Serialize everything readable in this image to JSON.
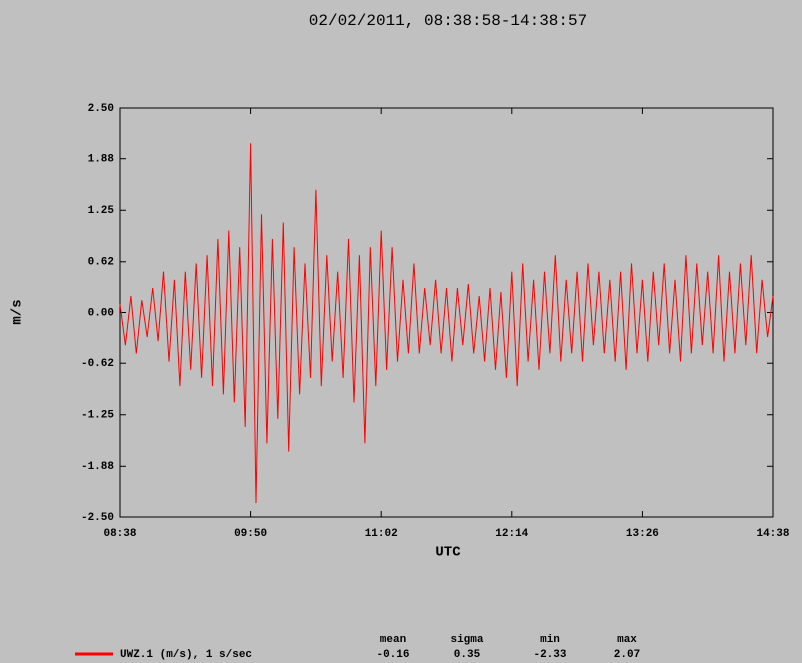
{
  "chart_data": {
    "type": "line",
    "title": "02/02/2011, 08:38:58-14:38:57",
    "xlabel": "UTC",
    "ylabel": "m/s",
    "xlim": [
      518,
      878
    ],
    "xticks": [
      {
        "value": 518,
        "label": "08:38"
      },
      {
        "value": 590,
        "label": "09:50"
      },
      {
        "value": 662,
        "label": "11:02"
      },
      {
        "value": 734,
        "label": "12:14"
      },
      {
        "value": 806,
        "label": "13:26"
      },
      {
        "value": 878,
        "label": "14:38"
      }
    ],
    "ylim": [
      -2.5,
      2.5
    ],
    "yticks": [
      {
        "value": 2.5,
        "label": "2.50"
      },
      {
        "value": 1.88,
        "label": "1.88"
      },
      {
        "value": 1.25,
        "label": "1.25"
      },
      {
        "value": 0.62,
        "label": "0.62"
      },
      {
        "value": 0,
        "label": "0.00"
      },
      {
        "value": -0.62,
        "label": "-0.62"
      },
      {
        "value": -1.25,
        "label": "-1.25"
      },
      {
        "value": -1.88,
        "label": "-1.88"
      },
      {
        "value": -2.5,
        "label": "-2.50"
      }
    ],
    "grid": false,
    "x": [
      518,
      521,
      524,
      527,
      530,
      533,
      536,
      539,
      542,
      545,
      548,
      551,
      554,
      557,
      560,
      563,
      566,
      569,
      572,
      575,
      578,
      581,
      584,
      587,
      590,
      593,
      596,
      599,
      602,
      605,
      608,
      611,
      614,
      617,
      620,
      623,
      626,
      629,
      632,
      635,
      638,
      641,
      644,
      647,
      650,
      653,
      656,
      659,
      662,
      665,
      668,
      671,
      674,
      677,
      680,
      683,
      686,
      689,
      692,
      695,
      698,
      701,
      704,
      707,
      710,
      713,
      716,
      719,
      722,
      725,
      728,
      731,
      734,
      737,
      740,
      743,
      746,
      749,
      752,
      755,
      758,
      761,
      764,
      767,
      770,
      773,
      776,
      779,
      782,
      785,
      788,
      791,
      794,
      797,
      800,
      803,
      806,
      809,
      812,
      815,
      818,
      821,
      824,
      827,
      830,
      833,
      836,
      839,
      842,
      845,
      848,
      851,
      854,
      857,
      860,
      863,
      866,
      869,
      872,
      875,
      878
    ],
    "series": [
      {
        "name": "UWZ.1 (m/s), 1 s/sec",
        "color": "#ff0000",
        "values": [
          0.1,
          -0.4,
          0.2,
          -0.5,
          0.15,
          -0.3,
          0.3,
          -0.35,
          0.5,
          -0.6,
          0.4,
          -0.9,
          0.5,
          -0.7,
          0.6,
          -0.8,
          0.7,
          -0.9,
          0.9,
          -1.0,
          1.0,
          -1.1,
          0.8,
          -1.4,
          2.07,
          -2.33,
          1.2,
          -1.6,
          0.9,
          -1.3,
          1.1,
          -1.7,
          0.8,
          -1.0,
          0.6,
          -0.8,
          1.5,
          -0.9,
          0.7,
          -0.6,
          0.5,
          -0.8,
          0.9,
          -1.1,
          0.7,
          -1.6,
          0.8,
          -0.9,
          1.0,
          -0.7,
          0.8,
          -0.6,
          0.4,
          -0.5,
          0.6,
          -0.5,
          0.3,
          -0.4,
          0.4,
          -0.5,
          0.3,
          -0.6,
          0.3,
          -0.4,
          0.35,
          -0.5,
          0.2,
          -0.6,
          0.3,
          -0.7,
          0.25,
          -0.8,
          0.5,
          -0.9,
          0.6,
          -0.6,
          0.4,
          -0.7,
          0.5,
          -0.5,
          0.7,
          -0.6,
          0.4,
          -0.5,
          0.5,
          -0.6,
          0.6,
          -0.4,
          0.5,
          -0.5,
          0.4,
          -0.6,
          0.5,
          -0.7,
          0.6,
          -0.5,
          0.4,
          -0.6,
          0.5,
          -0.4,
          0.6,
          -0.5,
          0.4,
          -0.6,
          0.7,
          -0.5,
          0.6,
          -0.4,
          0.5,
          -0.5,
          0.7,
          -0.6,
          0.5,
          -0.5,
          0.6,
          -0.4,
          0.7,
          -0.5,
          0.4,
          -0.3,
          0.2
        ]
      }
    ],
    "stats": {
      "headers": [
        "mean",
        "sigma",
        "min",
        "max"
      ],
      "values": [
        -0.16,
        0.35,
        -2.33,
        2.07
      ]
    }
  }
}
